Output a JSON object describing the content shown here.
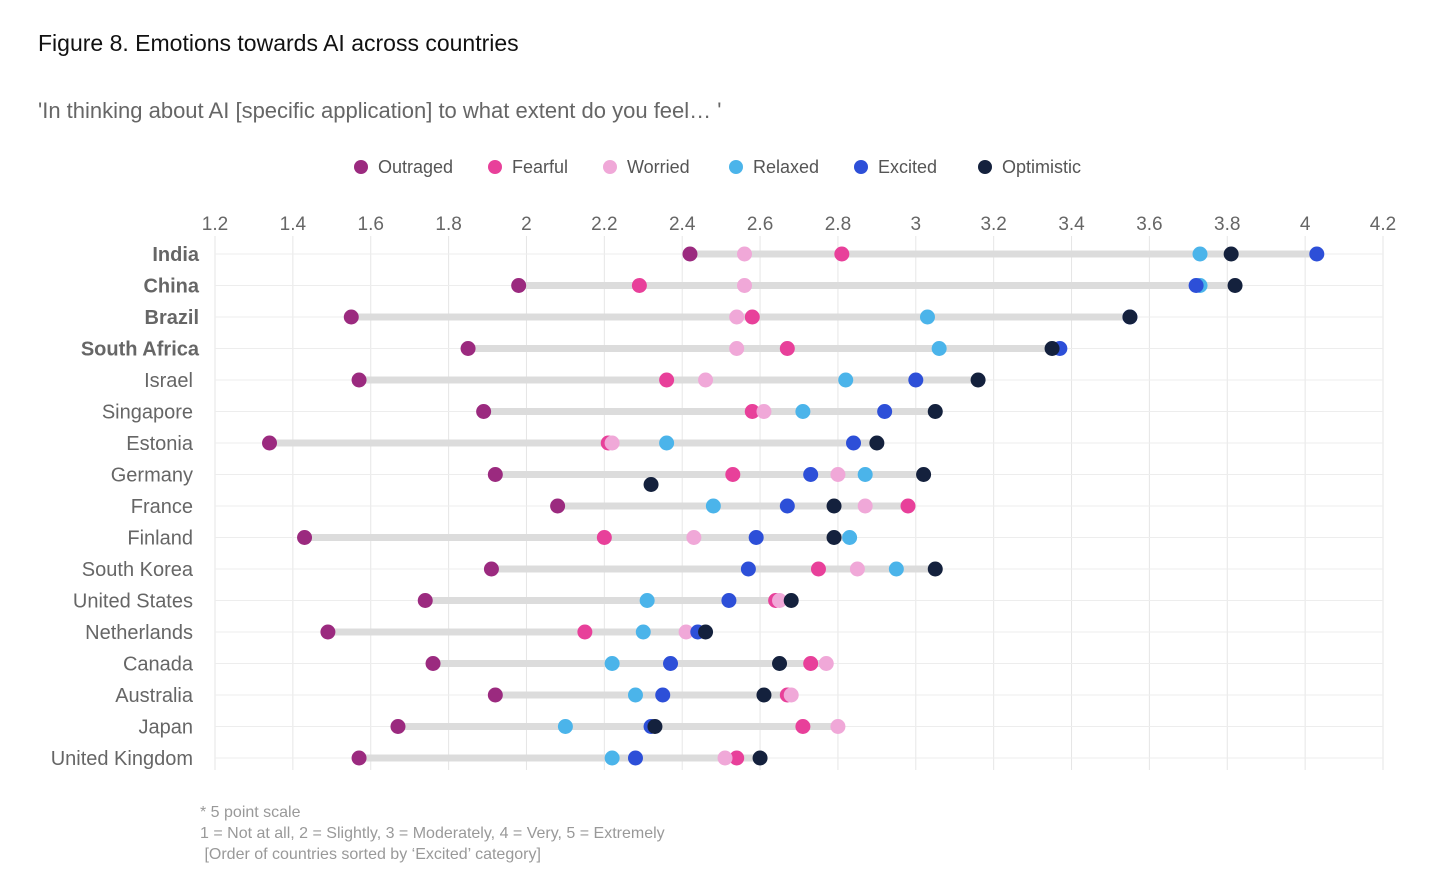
{
  "title": "Figure 8. Emotions towards AI across countries",
  "subtitle": "'In thinking about AI [specific application] to what extent do you feel… '",
  "notes": [
    "* 5 point scale",
    "1 = Not at all, 2 = Slightly, 3 = Moderately, 4 = Very, 5 = Extremely",
    " [Order of countries sorted by ‘Excited’ category]"
  ],
  "chart_data": {
    "type": "scatter",
    "variant": "dot-range",
    "xlim": [
      1.2,
      4.2
    ],
    "x_ticks": [
      "1.2",
      "1.4",
      "1.6",
      "1.8",
      "2",
      "2.2",
      "2.4",
      "2.6",
      "2.8",
      "3",
      "3.2",
      "3.4",
      "3.6",
      "3.8",
      "4",
      "4.2"
    ],
    "x_tick_values": [
      1.2,
      1.4,
      1.6,
      1.8,
      2.0,
      2.2,
      2.4,
      2.6,
      2.8,
      3.0,
      3.2,
      3.4,
      3.6,
      3.8,
      4.0,
      4.2
    ],
    "grid": true,
    "legend_position": "top",
    "bold_categories": [
      "India",
      "China",
      "Brazil",
      "South Africa"
    ],
    "categories": [
      "India",
      "China",
      "Brazil",
      "South Africa",
      "Israel",
      "Singapore",
      "Estonia",
      "Germany",
      "France",
      "Finland",
      "South Korea",
      "United States",
      "Netherlands",
      "Canada",
      "Australia",
      "Japan",
      "United Kingdom"
    ],
    "series": [
      {
        "name": "Outraged",
        "color": "#9b2a7f",
        "values": [
          2.42,
          1.98,
          1.55,
          1.85,
          1.57,
          1.89,
          1.34,
          1.92,
          2.08,
          1.43,
          1.91,
          1.74,
          1.49,
          1.76,
          1.92,
          1.67,
          1.57
        ]
      },
      {
        "name": "Fearful",
        "color": "#e8409a",
        "values": [
          2.81,
          2.29,
          2.58,
          2.67,
          2.36,
          2.58,
          2.21,
          2.53,
          2.98,
          2.2,
          2.75,
          2.64,
          2.15,
          2.73,
          2.67,
          2.71,
          2.54
        ]
      },
      {
        "name": "Worried",
        "color": "#f0a8d8",
        "values": [
          2.56,
          2.56,
          2.54,
          2.54,
          2.46,
          2.61,
          2.22,
          2.8,
          2.87,
          2.43,
          2.85,
          2.65,
          2.41,
          2.77,
          2.68,
          2.8,
          2.51
        ]
      },
      {
        "name": "Relaxed",
        "color": "#4bb4ea",
        "values": [
          3.73,
          3.73,
          3.03,
          3.06,
          2.82,
          2.71,
          2.36,
          2.87,
          2.48,
          2.83,
          2.95,
          2.31,
          2.3,
          2.22,
          2.28,
          2.1,
          2.22
        ]
      },
      {
        "name": "Excited",
        "color": "#2d4fd8",
        "values": [
          4.03,
          3.72,
          3.55,
          3.37,
          3.0,
          2.92,
          2.84,
          2.73,
          2.67,
          2.59,
          2.57,
          2.52,
          2.44,
          2.37,
          2.35,
          2.32,
          2.28
        ]
      },
      {
        "name": "Optimistic",
        "color": "#14213d",
        "values": [
          3.81,
          3.82,
          3.55,
          3.35,
          3.16,
          3.05,
          2.9,
          3.02,
          2.79,
          2.79,
          3.05,
          2.68,
          2.46,
          2.65,
          2.61,
          2.33,
          2.6
        ]
      }
    ],
    "outlier_points": [
      {
        "category": "Germany",
        "series": "Optimistic",
        "value": 2.32
      }
    ]
  }
}
